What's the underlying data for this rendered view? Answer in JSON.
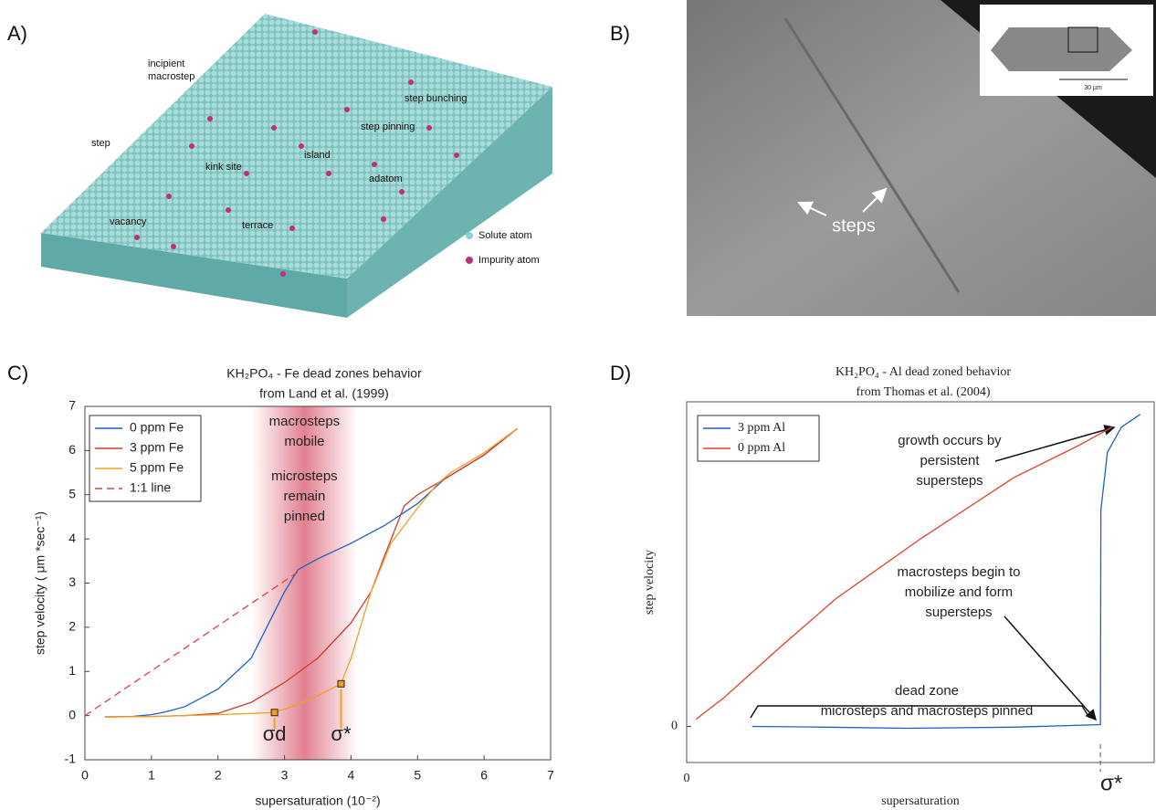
{
  "panels": {
    "a": "A)",
    "b": "B)",
    "c": "C)",
    "d": "D)"
  },
  "panel_a": {
    "labels": [
      "incipient",
      "macrostep",
      "step bunching",
      "step pinning",
      "step",
      "island",
      "kink site",
      "adatom",
      "vacancy",
      "terrace"
    ],
    "legend": [
      "Solute atom",
      "Impurity atom"
    ]
  },
  "panel_b": {
    "label": "steps",
    "scale": "30 µm"
  },
  "chart_data": [
    {
      "type": "line",
      "title": "KH₂PO₄ - Fe dead zones behavior",
      "subtitle": "from Land et al. (1999)",
      "x_label": "supersaturation (10⁻²)",
      "y_label": "step velocity ( μm *sec⁻¹)",
      "xlim": [
        0,
        7
      ],
      "ylim": [
        -1,
        7
      ],
      "xticks": [
        0,
        1,
        2,
        3,
        4,
        5,
        6,
        7
      ],
      "yticks": [
        -1,
        0,
        1,
        2,
        3,
        4,
        5,
        6,
        7
      ],
      "legend": "upper left",
      "shaded_region": [
        2.5,
        4.1
      ],
      "series": [
        {
          "name": "0 ppm Fe",
          "color": "#1f5fc4",
          "x": [
            0.3,
            0.7,
            1.0,
            1.2,
            1.5,
            2.0,
            2.5,
            2.8,
            3.0,
            3.2,
            3.5,
            4.0,
            4.5,
            5.0,
            5.4,
            6.0,
            6.5
          ],
          "values": [
            -0.03,
            -0.02,
            0.02,
            0.08,
            0.2,
            0.6,
            1.3,
            2.2,
            2.8,
            3.3,
            3.55,
            3.9,
            4.3,
            4.8,
            5.35,
            5.9,
            6.5
          ]
        },
        {
          "name": "3 ppm Fe",
          "color": "#d23a2a",
          "x": [
            0.3,
            1.0,
            1.5,
            2.0,
            2.5,
            3.0,
            3.5,
            4.0,
            4.3,
            4.5,
            4.8,
            5.0,
            5.4,
            6.0,
            6.5
          ],
          "values": [
            -0.03,
            -0.02,
            0,
            0.05,
            0.3,
            0.75,
            1.3,
            2.1,
            2.8,
            3.6,
            4.75,
            5.0,
            5.35,
            5.9,
            6.5
          ]
        },
        {
          "name": "5 ppm Fe",
          "color": "#f0a020",
          "x": [
            0.3,
            1.0,
            2.0,
            2.85,
            3.2,
            3.5,
            3.85,
            4.0,
            4.3,
            4.6,
            5.0,
            5.3,
            5.5,
            6.0,
            6.5
          ],
          "values": [
            -0.03,
            -0.02,
            0.02,
            0.07,
            0.25,
            0.45,
            0.72,
            1.3,
            2.8,
            3.9,
            4.7,
            5.25,
            5.5,
            5.95,
            6.5
          ]
        },
        {
          "name": "1:1 line",
          "color": "#e04040",
          "dashed": true,
          "x": [
            0,
            3.2
          ],
          "values": [
            0,
            3.25
          ]
        }
      ],
      "annotations": [
        {
          "lines": [
            "macrosteps",
            "mobile"
          ]
        },
        {
          "lines": [
            "microsteps",
            "remain",
            "pinned"
          ]
        }
      ],
      "points": [
        {
          "label": "σd",
          "x": 2.85,
          "y": 0.07
        },
        {
          "label": "σ*",
          "x": 3.85,
          "y": 0.72
        }
      ],
      "point_color": "#f0a020"
    },
    {
      "type": "line",
      "title": "KH₂PO₄ - Al dead zoned behavior",
      "subtitle": "from Thomas et al. (2004)",
      "x_label": "supersaturation",
      "y_label": "step velocity",
      "xlim": [
        0,
        1
      ],
      "ylim": [
        -0.1,
        0.9
      ],
      "xticks": [
        0
      ],
      "yticks": [
        0
      ],
      "legend": "upper left",
      "series": [
        {
          "name": "3 ppm Al",
          "color": "#1f5fc4",
          "x": [
            0.14,
            0.3,
            0.47,
            0.7,
            0.885,
            0.886,
            0.9,
            0.93,
            0.97
          ],
          "values": [
            0,
            -0.002,
            -0.005,
            -0.002,
            0.005,
            0.6,
            0.76,
            0.83,
            0.865
          ]
        },
        {
          "name": "0 ppm Al",
          "color": "#e0402a",
          "x": [
            0.02,
            0.08,
            0.2,
            0.32,
            0.5,
            0.7,
            0.84,
            0.91
          ],
          "values": [
            0.02,
            0.08,
            0.22,
            0.355,
            0.52,
            0.69,
            0.78,
            0.83
          ]
        }
      ],
      "annotations": [
        {
          "lines": [
            "growth occurs by",
            "persistent",
            "supersteps"
          ]
        },
        {
          "lines": [
            "macrosteps begin to",
            "mobilize and form",
            "supersteps"
          ]
        },
        {
          "lines": [
            "dead zone",
            "microsteps and macrosteps pinned"
          ]
        }
      ],
      "sigma_marker": {
        "label": "σ*",
        "x": 0.885
      }
    }
  ]
}
